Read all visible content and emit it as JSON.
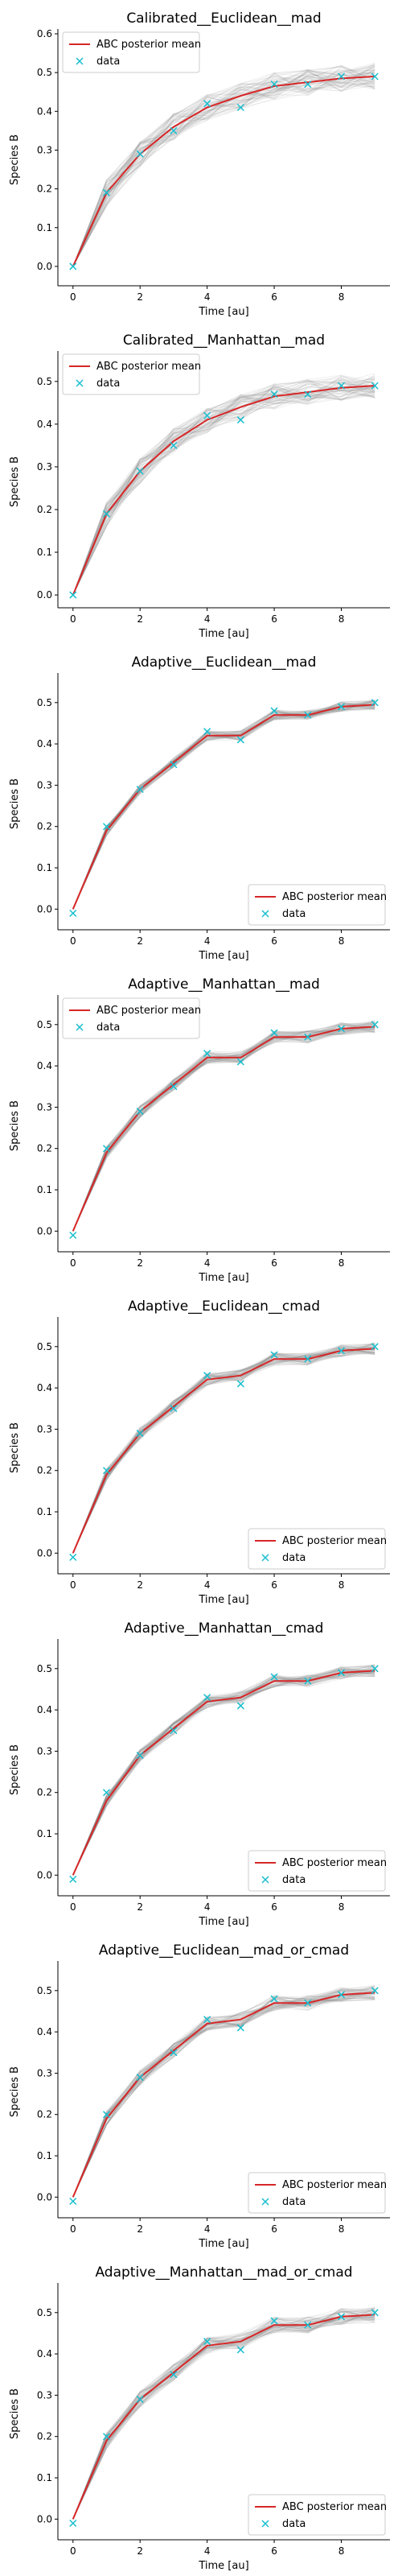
{
  "chart_data": [
    {
      "type": "line",
      "title": "Calibrated__Euclidean__mad",
      "xlabel": "Time [au]",
      "ylabel": "Species B",
      "xlim": [
        -0.45,
        9.45
      ],
      "ylim": [
        -0.05,
        0.6
      ],
      "yticks": [
        0.0,
        0.1,
        0.2,
        0.3,
        0.4,
        0.5,
        0.6
      ],
      "xticks": [
        0,
        2,
        4,
        6,
        8
      ],
      "legend": "top-left",
      "band_spread": 0.035,
      "x": [
        0,
        1,
        2,
        3,
        4,
        5,
        6,
        7,
        8,
        9
      ],
      "series": [
        {
          "name": "ABC posterior mean",
          "color": "#d62728",
          "values": [
            0.0,
            0.19,
            0.29,
            0.36,
            0.41,
            0.44,
            0.465,
            0.475,
            0.485,
            0.49
          ]
        },
        {
          "name": "data",
          "color": "#17becf",
          "values": [
            0.0,
            0.19,
            0.29,
            0.35,
            0.42,
            0.41,
            0.47,
            0.47,
            0.49,
            0.49
          ]
        }
      ]
    },
    {
      "type": "line",
      "title": "Calibrated__Manhattan__mad",
      "xlabel": "Time [au]",
      "ylabel": "Species B",
      "xlim": [
        -0.45,
        9.45
      ],
      "ylim": [
        -0.03,
        0.56
      ],
      "yticks": [
        0.0,
        0.1,
        0.2,
        0.3,
        0.4,
        0.5
      ],
      "xticks": [
        0,
        2,
        4,
        6,
        8
      ],
      "legend": "top-left",
      "band_spread": 0.03,
      "x": [
        0,
        1,
        2,
        3,
        4,
        5,
        6,
        7,
        8,
        9
      ],
      "series": [
        {
          "name": "ABC posterior mean",
          "color": "#d62728",
          "values": [
            0.0,
            0.19,
            0.29,
            0.36,
            0.41,
            0.44,
            0.465,
            0.475,
            0.485,
            0.49
          ]
        },
        {
          "name": "data",
          "color": "#17becf",
          "values": [
            0.0,
            0.19,
            0.29,
            0.35,
            0.42,
            0.41,
            0.47,
            0.47,
            0.49,
            0.49
          ]
        }
      ]
    },
    {
      "type": "line",
      "title": "Adaptive__Euclidean__mad",
      "xlabel": "Time [au]",
      "ylabel": "Species B",
      "xlim": [
        -0.45,
        9.45
      ],
      "ylim": [
        -0.05,
        0.56
      ],
      "yticks": [
        0.0,
        0.1,
        0.2,
        0.3,
        0.4,
        0.5
      ],
      "xticks": [
        0,
        2,
        4,
        6,
        8
      ],
      "legend": "bottom-right",
      "band_spread": 0.012,
      "x": [
        0,
        1,
        2,
        3,
        4,
        5,
        6,
        7,
        8,
        9
      ],
      "series": [
        {
          "name": "ABC posterior mean",
          "color": "#d62728",
          "values": [
            0.0,
            0.19,
            0.29,
            0.355,
            0.42,
            0.42,
            0.47,
            0.47,
            0.49,
            0.495
          ]
        },
        {
          "name": "data",
          "color": "#17becf",
          "values": [
            -0.01,
            0.2,
            0.29,
            0.35,
            0.43,
            0.41,
            0.48,
            0.47,
            0.49,
            0.5
          ]
        }
      ]
    },
    {
      "type": "line",
      "title": "Adaptive__Manhattan__mad",
      "xlabel": "Time [au]",
      "ylabel": "Species B",
      "xlim": [
        -0.45,
        9.45
      ],
      "ylim": [
        -0.05,
        0.56
      ],
      "yticks": [
        0.0,
        0.1,
        0.2,
        0.3,
        0.4,
        0.5
      ],
      "xticks": [
        0,
        2,
        4,
        6,
        8
      ],
      "legend": "top-left",
      "band_spread": 0.015,
      "x": [
        0,
        1,
        2,
        3,
        4,
        5,
        6,
        7,
        8,
        9
      ],
      "series": [
        {
          "name": "ABC posterior mean",
          "color": "#d62728",
          "values": [
            0.0,
            0.19,
            0.29,
            0.355,
            0.42,
            0.42,
            0.47,
            0.47,
            0.49,
            0.495
          ]
        },
        {
          "name": "data",
          "color": "#17becf",
          "values": [
            -0.01,
            0.2,
            0.29,
            0.35,
            0.43,
            0.41,
            0.48,
            0.47,
            0.49,
            0.5
          ]
        }
      ]
    },
    {
      "type": "line",
      "title": "Adaptive__Euclidean__cmad",
      "xlabel": "Time [au]",
      "ylabel": "Species B",
      "xlim": [
        -0.45,
        9.45
      ],
      "ylim": [
        -0.05,
        0.56
      ],
      "yticks": [
        0.0,
        0.1,
        0.2,
        0.3,
        0.4,
        0.5
      ],
      "xticks": [
        0,
        2,
        4,
        6,
        8
      ],
      "legend": "bottom-right",
      "band_spread": 0.015,
      "x": [
        0,
        1,
        2,
        3,
        4,
        5,
        6,
        7,
        8,
        9
      ],
      "series": [
        {
          "name": "ABC posterior mean",
          "color": "#d62728",
          "values": [
            0.0,
            0.19,
            0.29,
            0.355,
            0.42,
            0.43,
            0.47,
            0.47,
            0.49,
            0.495
          ]
        },
        {
          "name": "data",
          "color": "#17becf",
          "values": [
            -0.01,
            0.2,
            0.29,
            0.35,
            0.43,
            0.41,
            0.48,
            0.47,
            0.49,
            0.5
          ]
        }
      ]
    },
    {
      "type": "line",
      "title": "Adaptive__Manhattan__cmad",
      "xlabel": "Time [au]",
      "ylabel": "Species B",
      "xlim": [
        -0.45,
        9.45
      ],
      "ylim": [
        -0.05,
        0.56
      ],
      "yticks": [
        0.0,
        0.1,
        0.2,
        0.3,
        0.4,
        0.5
      ],
      "xticks": [
        0,
        2,
        4,
        6,
        8
      ],
      "legend": "bottom-right",
      "band_spread": 0.015,
      "x": [
        0,
        1,
        2,
        3,
        4,
        5,
        6,
        7,
        8,
        9
      ],
      "series": [
        {
          "name": "ABC posterior mean",
          "color": "#d62728",
          "values": [
            0.0,
            0.18,
            0.29,
            0.355,
            0.42,
            0.43,
            0.47,
            0.47,
            0.49,
            0.495
          ]
        },
        {
          "name": "data",
          "color": "#17becf",
          "values": [
            -0.01,
            0.2,
            0.29,
            0.35,
            0.43,
            0.41,
            0.48,
            0.47,
            0.49,
            0.5
          ]
        }
      ]
    },
    {
      "type": "line",
      "title": "Adaptive__Euclidean__mad_or_cmad",
      "xlabel": "Time [au]",
      "ylabel": "Species B",
      "xlim": [
        -0.45,
        9.45
      ],
      "ylim": [
        -0.05,
        0.56
      ],
      "yticks": [
        0.0,
        0.1,
        0.2,
        0.3,
        0.4,
        0.5
      ],
      "xticks": [
        0,
        2,
        4,
        6,
        8
      ],
      "legend": "bottom-right",
      "band_spread": 0.018,
      "x": [
        0,
        1,
        2,
        3,
        4,
        5,
        6,
        7,
        8,
        9
      ],
      "series": [
        {
          "name": "ABC posterior mean",
          "color": "#d62728",
          "values": [
            0.0,
            0.19,
            0.29,
            0.355,
            0.42,
            0.43,
            0.47,
            0.47,
            0.49,
            0.495
          ]
        },
        {
          "name": "data",
          "color": "#17becf",
          "values": [
            -0.01,
            0.2,
            0.29,
            0.35,
            0.43,
            0.41,
            0.48,
            0.47,
            0.49,
            0.5
          ]
        }
      ]
    },
    {
      "type": "line",
      "title": "Adaptive__Manhattan__mad_or_cmad",
      "xlabel": "Time [au]",
      "ylabel": "Species B",
      "xlim": [
        -0.45,
        9.45
      ],
      "ylim": [
        -0.05,
        0.56
      ],
      "yticks": [
        0.0,
        0.1,
        0.2,
        0.3,
        0.4,
        0.5
      ],
      "xticks": [
        0,
        2,
        4,
        6,
        8
      ],
      "legend": "bottom-right",
      "band_spread": 0.02,
      "x": [
        0,
        1,
        2,
        3,
        4,
        5,
        6,
        7,
        8,
        9
      ],
      "series": [
        {
          "name": "ABC posterior mean",
          "color": "#d62728",
          "values": [
            0.0,
            0.19,
            0.29,
            0.355,
            0.42,
            0.43,
            0.47,
            0.47,
            0.49,
            0.495
          ]
        },
        {
          "name": "data",
          "color": "#17becf",
          "values": [
            -0.01,
            0.2,
            0.29,
            0.35,
            0.43,
            0.41,
            0.48,
            0.47,
            0.49,
            0.5
          ]
        }
      ]
    }
  ]
}
